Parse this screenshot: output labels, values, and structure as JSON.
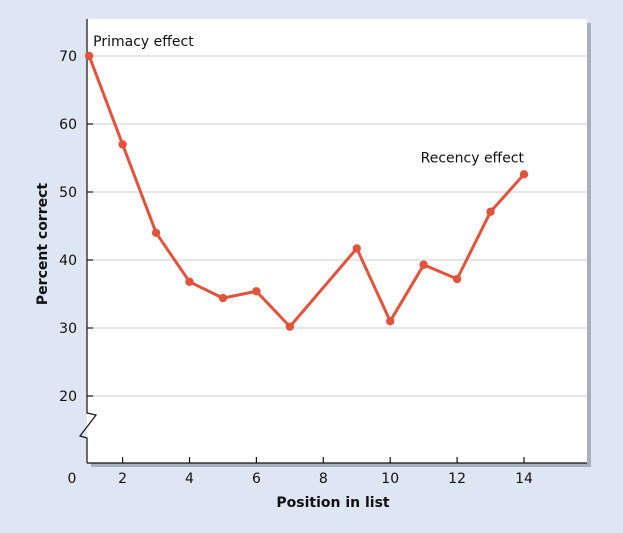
{
  "chart_data": {
    "type": "line",
    "title": "",
    "xlabel": "Position in list",
    "ylabel": "Percent correct",
    "x": [
      1,
      2,
      3,
      4,
      5,
      6,
      7,
      9,
      10,
      11,
      12,
      13,
      14
    ],
    "series": [
      {
        "values": [
          70,
          57,
          44,
          36.8,
          34.4,
          35.4,
          30.2,
          41.7,
          31,
          39.3,
          37.2,
          47.1,
          52.6
        ]
      }
    ],
    "xlim": [
      0,
      14.8
    ],
    "ylim": [
      20,
      75
    ],
    "y_axis_break": true,
    "x_ticks": [
      2,
      4,
      6,
      8,
      10,
      12,
      14
    ],
    "y_ticks": [
      20,
      30,
      40,
      50,
      60,
      70
    ],
    "origin_label": "0",
    "grid": "horizontal",
    "line_color": "#e2533c",
    "annotations": [
      {
        "text": "Primacy effect",
        "x": 1,
        "y": 70
      },
      {
        "text": "Recency effect",
        "x": 14,
        "y": 52.6
      }
    ]
  }
}
